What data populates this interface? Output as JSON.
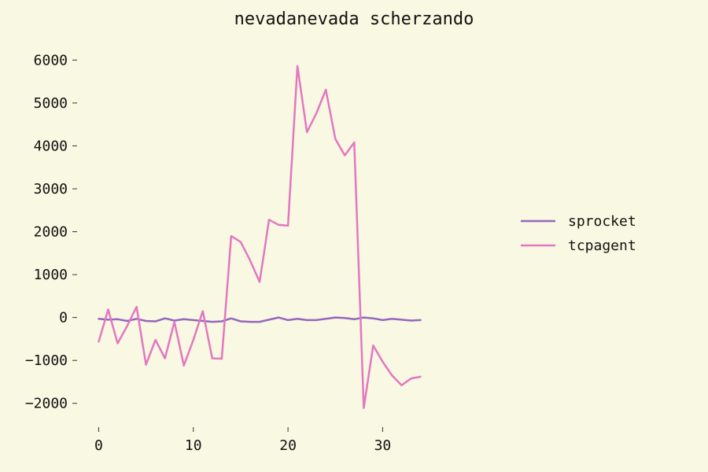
{
  "chart_data": {
    "type": "line",
    "title": "nevadanevada scherzando",
    "xlabel": "",
    "ylabel": "",
    "xlim": [
      -1.7,
      35.7
    ],
    "ylim": [
      -2500,
      6300
    ],
    "xticks": [
      0,
      10,
      20,
      30
    ],
    "yticks": [
      -2000,
      -1000,
      0,
      1000,
      2000,
      3000,
      4000,
      5000,
      6000
    ],
    "xtick_labels": [
      "0",
      "10",
      "20",
      "30"
    ],
    "ytick_labels": [
      "−2000",
      "−1000",
      "0",
      "1000",
      "2000",
      "3000",
      "4000",
      "5000",
      "6000"
    ],
    "grid": false,
    "legend_position": "right",
    "x": [
      0,
      1,
      2,
      3,
      4,
      5,
      6,
      7,
      8,
      9,
      10,
      11,
      12,
      13,
      14,
      15,
      16,
      17,
      18,
      19,
      20,
      21,
      22,
      23,
      24,
      25,
      26,
      27,
      28,
      29,
      30,
      31,
      32,
      33,
      34
    ],
    "series": [
      {
        "name": "sprocket",
        "color": "#9467bd",
        "values": [
          -30,
          -50,
          -40,
          -80,
          -30,
          -80,
          -90,
          -20,
          -70,
          -40,
          -60,
          -80,
          -100,
          -90,
          -20,
          -90,
          -100,
          -100,
          -50,
          0,
          -60,
          -30,
          -60,
          -60,
          -30,
          0,
          -10,
          -40,
          0,
          -20,
          -60,
          -30,
          -50,
          -70,
          -60
        ]
      },
      {
        "name": "tcpagent",
        "color": "#e377c2",
        "values": [
          -560,
          190,
          -600,
          -200,
          250,
          -1100,
          -520,
          -950,
          -100,
          -1120,
          -520,
          150,
          -950,
          -960,
          1900,
          1760,
          1330,
          830,
          2280,
          2160,
          2140,
          5860,
          4320,
          4760,
          5310,
          4160,
          3780,
          4080,
          -2110,
          -650,
          -1030,
          -1350,
          -1580,
          -1420,
          -1380
        ]
      }
    ]
  }
}
